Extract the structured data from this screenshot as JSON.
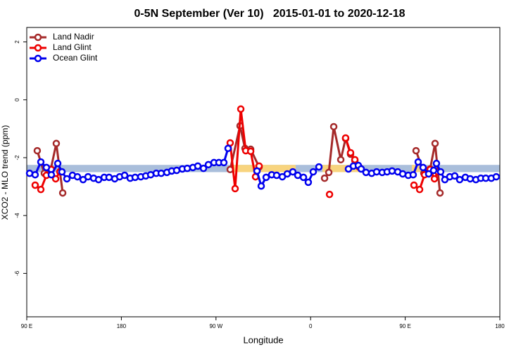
{
  "chart_data": {
    "type": "line",
    "title": "0-5N September (Ver 10)   2015-01-01 to 2020-12-18",
    "xlabel": "Longitude",
    "ylabel": "XCO2 - MLO trend (ppm)",
    "xlim": [
      90,
      540
    ],
    "ylim": [
      -7.5,
      2.5
    ],
    "xticks": [
      {
        "value": 90,
        "label": "90 E"
      },
      {
        "value": 180,
        "label": "180"
      },
      {
        "value": 270,
        "label": "90 W"
      },
      {
        "value": 360,
        "label": "0"
      },
      {
        "value": 450,
        "label": "90 E"
      },
      {
        "value": 540,
        "label": "180"
      }
    ],
    "yticks": [
      -6,
      -4,
      -2,
      0,
      2
    ],
    "legend": "upper left",
    "bands": [
      {
        "color": "#a9bedb",
        "x": [
          90,
          540
        ],
        "y": [
          -2.5,
          -2.25
        ]
      },
      {
        "color": "#f8d47e",
        "x": [
          285.5,
          345.8
        ],
        "y": [
          -2.5,
          -2.25
        ]
      },
      {
        "color": "#f8d47e",
        "x": [
          371.3,
          407.4
        ],
        "y": [
          -2.5,
          -2.25
        ]
      },
      {
        "color": "#f8d47e",
        "x": [
          456.3,
          465.0
        ],
        "y": [
          -2.5,
          -2.25
        ]
      }
    ],
    "series": [
      {
        "name": "Land Nadir",
        "color": "#a52a2a",
        "x": [
          100.0,
          106.7,
          112.8,
          118.1,
          124.2,
          198.5,
          283.5,
          292.9,
          297.6,
          303.0,
          311.0,
          345.8,
          373.3,
          377.3,
          382.0,
          388.7,
          393.3,
          398.0,
          402.1,
          432.8,
          460.3,
          467.7,
          473.7,
          478.4,
          483.1
        ],
        "values": [
          -1.76,
          -2.54,
          -2.41,
          -1.51,
          -3.22,
          null,
          -2.41,
          -0.9,
          -1.68,
          -1.71,
          -2.32,
          null,
          -2.71,
          -2.51,
          -0.93,
          -2.07,
          -1.34,
          -1.88,
          -2.1,
          null,
          -1.76,
          -2.54,
          -2.39,
          -1.51,
          -3.22
        ]
      },
      {
        "name": "Land Glint",
        "color": "#ee0000",
        "x": [
          98.0,
          103.4,
          108.7,
          113.4,
          117.5,
          121.5,
          198.5,
          283.5,
          288.2,
          293.6,
          298.3,
          303.0,
          307.6,
          311.0,
          345.8,
          378.0,
          386.0,
          393.3,
          398.0,
          402.1,
          406.1,
          432.8,
          458.3,
          463.7,
          468.4,
          473.7,
          477.8,
          481.1
        ],
        "values": [
          -2.95,
          -3.1,
          -2.61,
          -2.41,
          -2.73,
          -2.49,
          null,
          -1.49,
          -3.07,
          -0.32,
          -1.76,
          -1.78,
          -2.66,
          -2.29,
          null,
          -3.27,
          null,
          -1.32,
          -1.83,
          -2.07,
          -2.32,
          null,
          -2.95,
          -3.1,
          -2.59,
          -2.41,
          -2.73,
          -2.49
        ]
      },
      {
        "name": "Ocean Glint",
        "color": "#0000ee",
        "x": [
          92.7,
          98.0,
          103.4,
          108.7,
          113.4,
          119.5,
          123.5,
          128.2,
          133.5,
          138.2,
          143.6,
          148.3,
          153.6,
          158.3,
          163.7,
          168.3,
          173.7,
          178.4,
          183.1,
          188.4,
          193.1,
          198.5,
          203.2,
          207.9,
          213.2,
          217.9,
          223.3,
          227.9,
          232.6,
          238.0,
          242.7,
          248.0,
          252.7,
          258.1,
          262.8,
          268.1,
          272.8,
          277.5,
          281.5,
          295.6,
          309.0,
          313.0,
          317.7,
          323.0,
          327.7,
          333.1,
          337.8,
          343.1,
          347.8,
          353.2,
          357.8,
          362.5,
          367.9,
          379.3,
          396.0,
          400.7,
          405.4,
          408.1,
          412.7,
          418.1,
          422.8,
          428.1,
          432.8,
          437.5,
          442.9,
          447.6,
          452.9,
          457.6,
          462.3,
          467.0,
          472.3,
          477.0,
          479.7,
          483.7,
          487.7,
          492.4,
          497.1,
          501.8,
          507.2,
          511.8,
          517.2,
          521.9,
          526.6,
          531.9,
          536.6
        ],
        "values": [
          -2.54,
          -2.59,
          -2.15,
          -2.34,
          -2.59,
          -2.2,
          -2.49,
          -2.73,
          -2.61,
          -2.66,
          -2.76,
          -2.66,
          -2.71,
          -2.76,
          -2.68,
          -2.68,
          -2.73,
          -2.66,
          -2.61,
          -2.71,
          -2.68,
          -2.66,
          -2.63,
          -2.59,
          -2.54,
          -2.54,
          -2.51,
          -2.46,
          -2.44,
          -2.39,
          -2.37,
          -2.34,
          -2.29,
          -2.37,
          -2.24,
          -2.17,
          -2.17,
          -2.17,
          -1.68,
          null,
          -2.46,
          -2.98,
          -2.68,
          -2.59,
          -2.61,
          -2.66,
          -2.56,
          -2.49,
          -2.61,
          -2.68,
          -2.85,
          -2.49,
          -2.32,
          null,
          -2.39,
          -2.29,
          -2.27,
          -2.39,
          -2.51,
          -2.54,
          -2.49,
          -2.51,
          -2.49,
          -2.46,
          -2.49,
          -2.56,
          -2.61,
          -2.59,
          -2.15,
          -2.34,
          -2.56,
          -2.44,
          -2.2,
          -2.49,
          -2.76,
          -2.66,
          -2.63,
          -2.76,
          -2.68,
          -2.73,
          -2.76,
          -2.71,
          -2.71,
          -2.71,
          -2.66
        ]
      }
    ]
  }
}
